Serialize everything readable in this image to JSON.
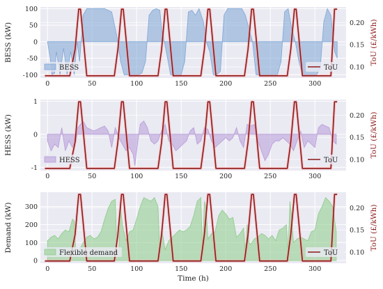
{
  "chart_data": [
    {
      "type": "area",
      "ylabel": "BESS (kW)",
      "ylabel_right": "ToU (£/kWh)",
      "xlim": [
        -8,
        335
      ],
      "ylim": [
        -110,
        105
      ],
      "ylim_right": [
        0.075,
        0.235
      ],
      "xticks": [
        0,
        50,
        100,
        150,
        200,
        250,
        300
      ],
      "yticks": [
        -100,
        -50,
        0,
        50,
        100
      ],
      "yticks_right": [
        0.1,
        0.15,
        0.2
      ],
      "yticks_right_labels": [
        "0.10",
        "0.15",
        "0.20"
      ],
      "grid": true,
      "legend_left": {
        "label": "BESS",
        "color": "#7ea6d6",
        "placement": "lower-left"
      },
      "legend_right": {
        "label": "ToU",
        "color": "#8b1a1a",
        "placement": "lower-right"
      },
      "series": [
        {
          "name": "BESS",
          "color": "#7ea6d6",
          "x": [
            0,
            3,
            5,
            8,
            10,
            14,
            18,
            22,
            26,
            30,
            33,
            36,
            40,
            44,
            48,
            52,
            56,
            60,
            64,
            68,
            72,
            76,
            79,
            82,
            86,
            90,
            94,
            98,
            102,
            106,
            110,
            114,
            118,
            122,
            126,
            128,
            131,
            134,
            138,
            142,
            146,
            150,
            154,
            158,
            162,
            166,
            170,
            175,
            178,
            182,
            186,
            190,
            194,
            198,
            202,
            206,
            210,
            214,
            218,
            222,
            226,
            230,
            234,
            238,
            242,
            246,
            250,
            254,
            258,
            262,
            266,
            270,
            274,
            278,
            282,
            286,
            290,
            294,
            298,
            302,
            306,
            310,
            314,
            318,
            322,
            325
          ],
          "values": [
            0,
            -50,
            -100,
            -95,
            -30,
            -100,
            -20,
            -100,
            -30,
            -100,
            0,
            -60,
            80,
            100,
            100,
            100,
            100,
            100,
            100,
            95,
            90,
            40,
            0,
            -60,
            -100,
            -100,
            -100,
            -100,
            -100,
            -95,
            -60,
            80,
            95,
            100,
            95,
            40,
            0,
            -40,
            -100,
            -100,
            -100,
            -100,
            -60,
            90,
            95,
            80,
            100,
            60,
            0,
            -30,
            -100,
            -100,
            -90,
            80,
            100,
            100,
            100,
            100,
            100,
            80,
            40,
            0,
            -100,
            -100,
            -100,
            -100,
            -100,
            -100,
            -100,
            -60,
            90,
            100,
            40,
            0,
            -60,
            -100,
            -100,
            -100,
            -100,
            -100,
            -80,
            60,
            100,
            80,
            -30,
            -50
          ]
        }
      ],
      "tou": {
        "name": "ToU",
        "color": "#8b1a1a",
        "x": [
          -3,
          25,
          31,
          35,
          37,
          44,
          75,
          79,
          83,
          85,
          92,
          124,
          128,
          132,
          134,
          141,
          172,
          176,
          180,
          182,
          189,
          221,
          225,
          229,
          231,
          238,
          269,
          273,
          277,
          279,
          286,
          318,
          322,
          325
        ],
        "values": [
          0.08,
          0.08,
          0.14,
          0.23,
          0.23,
          0.08,
          0.08,
          0.14,
          0.23,
          0.23,
          0.08,
          0.08,
          0.14,
          0.23,
          0.23,
          0.08,
          0.08,
          0.14,
          0.23,
          0.23,
          0.08,
          0.08,
          0.14,
          0.23,
          0.23,
          0.08,
          0.08,
          0.14,
          0.23,
          0.23,
          0.08,
          0.08,
          0.23,
          0.23
        ]
      }
    },
    {
      "type": "area",
      "ylabel": "HESS (kW)",
      "ylabel_right": "ToU (£/kWh)",
      "xlim": [
        -8,
        335
      ],
      "ylim": [
        -1.1,
        1.05
      ],
      "ylim_right": [
        0.075,
        0.235
      ],
      "xticks": [
        0,
        50,
        100,
        150,
        200,
        250,
        300
      ],
      "yticks": [
        -1,
        0,
        1
      ],
      "yticks_right": [
        0.1,
        0.15,
        0.2
      ],
      "yticks_right_labels": [
        "0.10",
        "0.15",
        "0.20"
      ],
      "grid": true,
      "legend_left": {
        "label": "HESS",
        "color": "#b79ad8",
        "placement": "lower-left"
      },
      "legend_right": {
        "label": "ToU",
        "color": "#8b1a1a",
        "placement": "lower-right"
      },
      "series": [
        {
          "name": "HESS",
          "color": "#b79ad8",
          "x": [
            0,
            4,
            8,
            12,
            16,
            20,
            24,
            28,
            32,
            34,
            37,
            40,
            44,
            48,
            52,
            56,
            60,
            64,
            68,
            72,
            76,
            80,
            84,
            88,
            92,
            96,
            98,
            100,
            104,
            108,
            112,
            116,
            120,
            124,
            128,
            132,
            136,
            140,
            144,
            148,
            152,
            156,
            160,
            164,
            168,
            172,
            176,
            180,
            184,
            188,
            192,
            196,
            200,
            204,
            208,
            212,
            216,
            220,
            224,
            228,
            232,
            236,
            240,
            244,
            248,
            252,
            256,
            260,
            264,
            268,
            272,
            276,
            280,
            284,
            288,
            292,
            296,
            300,
            304,
            308,
            312,
            316,
            320,
            324
          ],
          "values": [
            -0.2,
            -0.5,
            -0.3,
            -0.4,
            0.2,
            -0.5,
            -0.2,
            -0.4,
            -0.2,
            0.2,
            0.3,
            0.4,
            0.2,
            0.15,
            0.1,
            0.15,
            0.2,
            0.25,
            0.1,
            -0.4,
            0.2,
            -0.1,
            -0.3,
            -0.5,
            -0.4,
            -0.6,
            -0.95,
            -0.5,
            0.3,
            0.4,
            0.2,
            -0.2,
            -0.3,
            -0.2,
            0.1,
            0.3,
            -0.2,
            -0.3,
            -0.5,
            -0.4,
            -0.3,
            -0.2,
            0.1,
            0.2,
            -0.3,
            -0.2,
            0.2,
            0.15,
            -0.2,
            -0.4,
            -0.3,
            -0.2,
            -0.1,
            -0.2,
            -0.1,
            0.2,
            -0.2,
            -0.4,
            0.3,
            0.25,
            0.3,
            -0.2,
            -0.5,
            -0.8,
            -0.6,
            -0.3,
            -0.2,
            -0.2,
            -0.1,
            -0.2,
            -0.3,
            -0.5,
            -0.2,
            0.1,
            -0.4,
            -0.2,
            -0.3,
            -0.4,
            0.2,
            0.3,
            0.25,
            0.2,
            -0.2,
            -0.3
          ]
        }
      ],
      "tou": {
        "name": "ToU",
        "color": "#8b1a1a",
        "x": [
          -3,
          25,
          31,
          35,
          37,
          44,
          75,
          79,
          83,
          85,
          92,
          124,
          128,
          132,
          134,
          141,
          172,
          176,
          180,
          182,
          189,
          221,
          225,
          229,
          231,
          238,
          269,
          273,
          277,
          279,
          286,
          318,
          322,
          325
        ],
        "values": [
          0.08,
          0.08,
          0.14,
          0.23,
          0.23,
          0.08,
          0.08,
          0.14,
          0.23,
          0.23,
          0.08,
          0.08,
          0.14,
          0.23,
          0.23,
          0.08,
          0.08,
          0.14,
          0.23,
          0.23,
          0.08,
          0.08,
          0.14,
          0.23,
          0.23,
          0.08,
          0.08,
          0.14,
          0.23,
          0.23,
          0.08,
          0.08,
          0.23,
          0.23
        ]
      }
    },
    {
      "type": "area",
      "ylabel": "Demand (kW)",
      "ylabel_right": "ToU (£/kWh)",
      "xlabel": "Time (h)",
      "xlim": [
        -8,
        335
      ],
      "ylim": [
        -15,
        380
      ],
      "ylim_right": [
        0.075,
        0.235
      ],
      "xticks": [
        0,
        50,
        100,
        150,
        200,
        250,
        300
      ],
      "yticks": [
        0,
        100,
        200,
        300
      ],
      "yticks_right": [
        0.1,
        0.15,
        0.2
      ],
      "yticks_right_labels": [
        "0.10",
        "0.15",
        "0.20"
      ],
      "grid": true,
      "legend_left": {
        "label": "Flexible demand",
        "color": "#8ccc88",
        "placement": "lower-left"
      },
      "legend_right": {
        "label": "ToU",
        "color": "#8b1a1a",
        "placement": "lower-right"
      },
      "series": [
        {
          "name": "Flexible demand",
          "color": "#8ccc88",
          "x": [
            0,
            4,
            8,
            12,
            16,
            20,
            24,
            28,
            30,
            32,
            34,
            36,
            40,
            44,
            48,
            52,
            56,
            60,
            64,
            68,
            72,
            76,
            78,
            80,
            82,
            84,
            88,
            92,
            96,
            100,
            104,
            108,
            112,
            116,
            120,
            124,
            126,
            128,
            130,
            132,
            136,
            140,
            144,
            148,
            152,
            156,
            160,
            164,
            168,
            172,
            174,
            176,
            178,
            180,
            184,
            188,
            192,
            196,
            200,
            204,
            208,
            212,
            216,
            220,
            222,
            224,
            226,
            228,
            232,
            236,
            240,
            244,
            248,
            252,
            256,
            260,
            264,
            268,
            270,
            272,
            274,
            276,
            280,
            284,
            288,
            292,
            296,
            300,
            304,
            308,
            312,
            316,
            320,
            324
          ],
          "values": [
            110,
            130,
            140,
            120,
            150,
            170,
            160,
            230,
            220,
            20,
            40,
            60,
            100,
            130,
            140,
            120,
            130,
            160,
            230,
            290,
            330,
            340,
            40,
            60,
            300,
            200,
            110,
            160,
            170,
            230,
            300,
            350,
            340,
            330,
            350,
            300,
            60,
            180,
            120,
            60,
            110,
            130,
            150,
            170,
            160,
            170,
            190,
            250,
            330,
            350,
            40,
            330,
            280,
            120,
            150,
            160,
            250,
            280,
            260,
            230,
            240,
            130,
            150,
            180,
            40,
            200,
            100,
            90,
            120,
            130,
            150,
            140,
            120,
            140,
            110,
            170,
            180,
            200,
            50,
            330,
            230,
            100,
            120,
            130,
            120,
            110,
            160,
            170,
            260,
            300,
            350,
            330,
            300,
            160
          ]
        }
      ],
      "tou": {
        "name": "ToU",
        "color": "#8b1a1a",
        "x": [
          -3,
          25,
          31,
          35,
          37,
          44,
          75,
          79,
          83,
          85,
          92,
          124,
          128,
          132,
          134,
          141,
          172,
          176,
          180,
          182,
          189,
          221,
          225,
          229,
          231,
          238,
          269,
          273,
          277,
          279,
          286,
          318,
          322,
          325
        ],
        "values": [
          0.08,
          0.08,
          0.14,
          0.23,
          0.23,
          0.08,
          0.08,
          0.14,
          0.23,
          0.23,
          0.08,
          0.08,
          0.14,
          0.23,
          0.23,
          0.08,
          0.08,
          0.14,
          0.23,
          0.23,
          0.08,
          0.08,
          0.14,
          0.23,
          0.23,
          0.08,
          0.08,
          0.14,
          0.23,
          0.23,
          0.08,
          0.08,
          0.23,
          0.23
        ]
      }
    }
  ]
}
